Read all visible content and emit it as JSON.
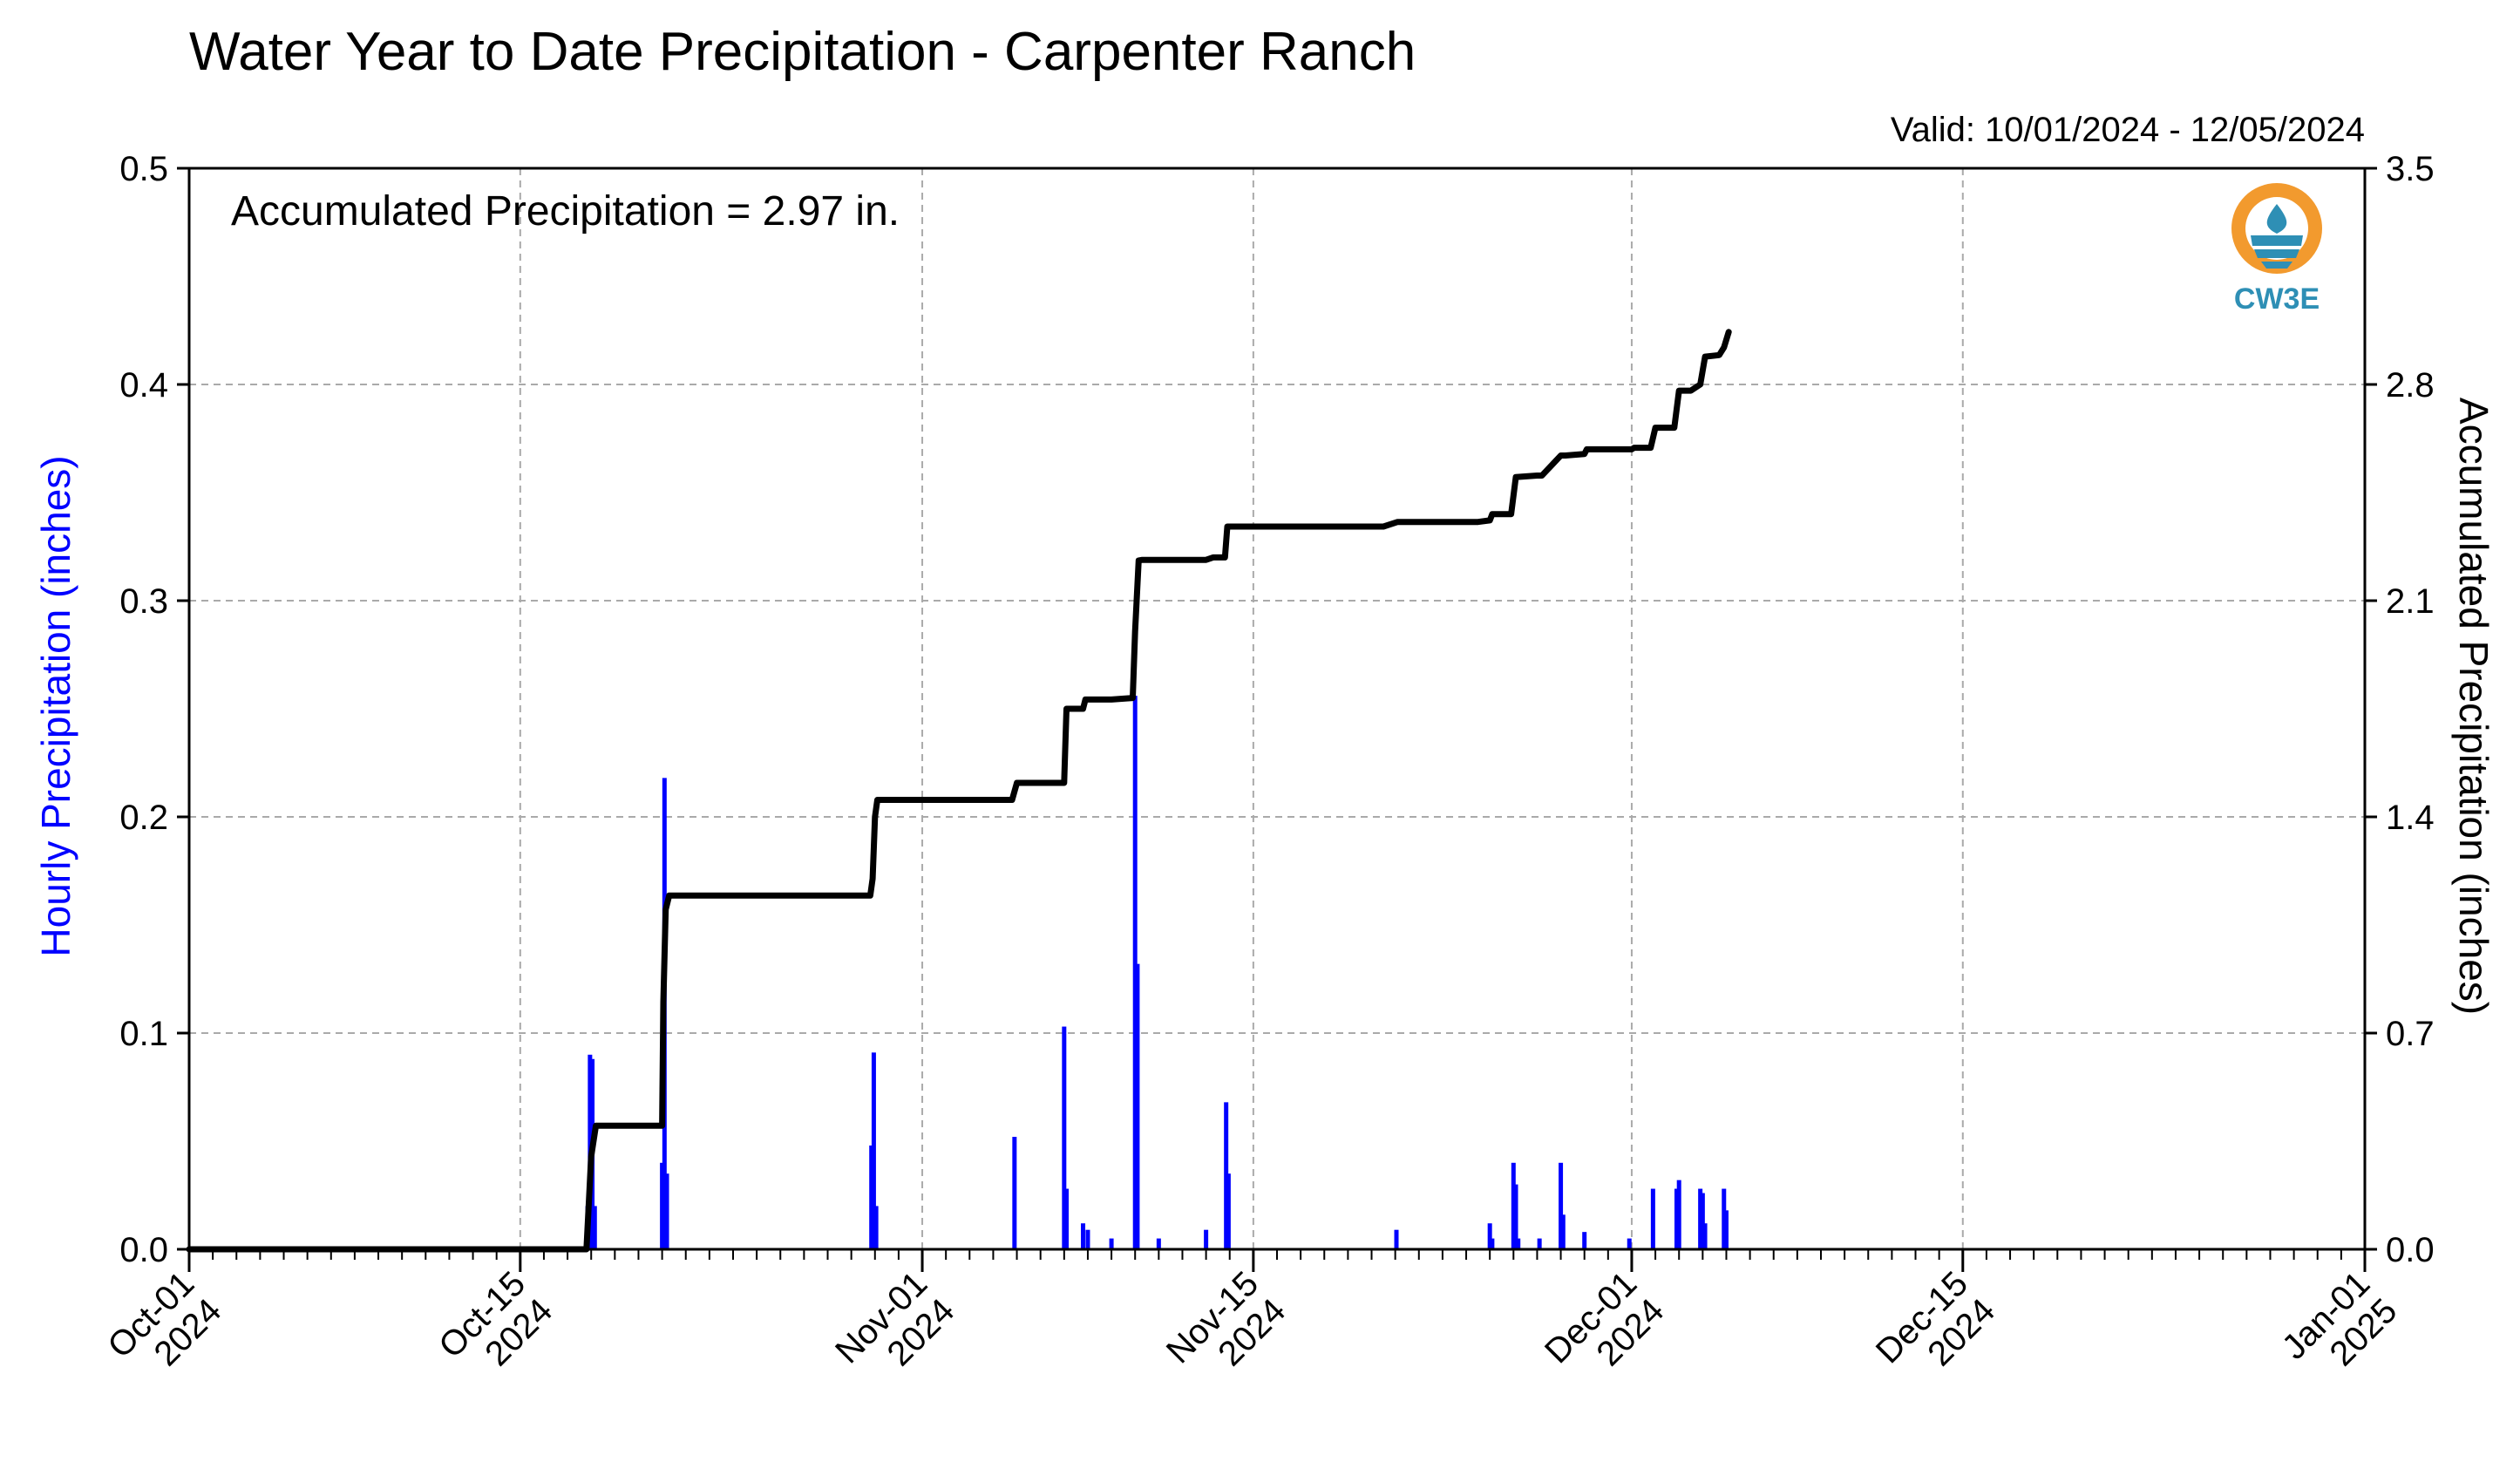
{
  "chart_data": {
    "type": "bar",
    "title": "Water Year to Date Precipitation - Carpenter Ranch",
    "subtitle": "Valid: 10/01/2024 - 12/05/2024",
    "annotation": "Accumulated Precipitation = 2.97 in.",
    "logo_text": "CW3E",
    "ylabel_left": "Hourly Precipitation (inches)",
    "ylabel_right": "Accumulated Precipitation (inches)",
    "ylim_left": [
      0,
      0.5
    ],
    "ylim_right": [
      0,
      3.5
    ],
    "yticks_left": [
      "0.0",
      "0.1",
      "0.2",
      "0.3",
      "0.4",
      "0.5"
    ],
    "yticks_right": [
      "0.0",
      "0.7",
      "1.4",
      "2.1",
      "2.8",
      "3.5"
    ],
    "x_range_days": [
      0,
      92
    ],
    "x_ticks": [
      {
        "day": 0,
        "line1": "Oct-01",
        "line2": "2024"
      },
      {
        "day": 14,
        "line1": "Oct-15",
        "line2": "2024"
      },
      {
        "day": 31,
        "line1": "Nov-01",
        "line2": "2024"
      },
      {
        "day": 45,
        "line1": "Nov-15",
        "line2": "2024"
      },
      {
        "day": 61,
        "line1": "Dec-01",
        "line2": "2024"
      },
      {
        "day": 75,
        "line1": "Dec-15",
        "line2": "2024"
      },
      {
        "day": 92,
        "line1": "Jan-01",
        "line2": "2025"
      }
    ],
    "grid": true,
    "colors": {
      "hourly": "#0000ff",
      "accumulated": "#000000",
      "grid": "#aaaaaa",
      "logo_orange": "#f29a2e",
      "logo_teal": "#2e8fb5"
    },
    "series": [
      {
        "name": "Hourly Precipitation (inches)",
        "axis": "left",
        "type": "bar",
        "x_days": [
          16.85,
          16.95,
          17.05,
          17.15,
          20.0,
          20.1,
          20.2,
          28.85,
          28.95,
          29.05,
          34.9,
          37.0,
          37.1,
          37.8,
          38.0,
          39.0,
          40.0,
          40.1,
          41.0,
          43.0,
          43.85,
          43.95,
          51.05,
          55.0,
          55.1,
          56.0,
          56.1,
          56.2,
          57.1,
          58.0,
          58.1,
          59.0,
          60.9,
          61.9,
          62.9,
          63.0,
          63.9,
          64.0,
          64.1,
          64.9,
          65.0
        ],
        "values": [
          0.02,
          0.09,
          0.088,
          0.02,
          0.04,
          0.218,
          0.035,
          0.048,
          0.091,
          0.02,
          0.052,
          0.103,
          0.028,
          0.012,
          0.009,
          0.005,
          0.256,
          0.132,
          0.005,
          0.009,
          0.068,
          0.035,
          0.009,
          0.012,
          0.005,
          0.04,
          0.03,
          0.005,
          0.005,
          0.04,
          0.016,
          0.008,
          0.005,
          0.028,
          0.028,
          0.032,
          0.028,
          0.026,
          0.012,
          0.028,
          0.018
        ]
      },
      {
        "name": "Accumulated Precipitation (inches)",
        "axis": "right",
        "type": "line",
        "x_days": [
          0,
          16.8,
          16.9,
          17.0,
          17.2,
          17.3,
          20.0,
          20.05,
          20.15,
          20.3,
          28.8,
          28.9,
          29.0,
          29.1,
          34.8,
          35.0,
          37.0,
          37.1,
          37.7,
          37.8,
          37.9,
          38.0,
          39.0,
          39.9,
          40.0,
          40.15,
          40.3,
          43.0,
          43.3,
          43.8,
          43.9,
          50.5,
          51.1,
          54.5,
          55.0,
          55.1,
          55.9,
          56.1,
          57.0,
          57.2,
          58.0,
          58.2,
          59.0,
          59.1,
          61.0,
          61.1,
          61.8,
          62.0,
          62.3,
          62.8,
          63.0,
          63.5,
          63.9,
          64.1,
          64.7,
          64.9,
          65.1
        ],
        "values": [
          0,
          0,
          0.15,
          0.3,
          0.4,
          0.4,
          0.4,
          0.8,
          1.1,
          1.145,
          1.145,
          1.2,
          1.4,
          1.455,
          1.455,
          1.51,
          1.51,
          1.75,
          1.75,
          1.75,
          1.78,
          1.78,
          1.78,
          1.785,
          2.0,
          2.23,
          2.232,
          2.232,
          2.24,
          2.24,
          2.34,
          2.34,
          2.355,
          2.355,
          2.36,
          2.38,
          2.38,
          2.5,
          2.505,
          2.505,
          2.57,
          2.57,
          2.575,
          2.59,
          2.59,
          2.595,
          2.595,
          2.66,
          2.66,
          2.66,
          2.78,
          2.78,
          2.8,
          2.89,
          2.895,
          2.92,
          2.97
        ]
      }
    ]
  }
}
